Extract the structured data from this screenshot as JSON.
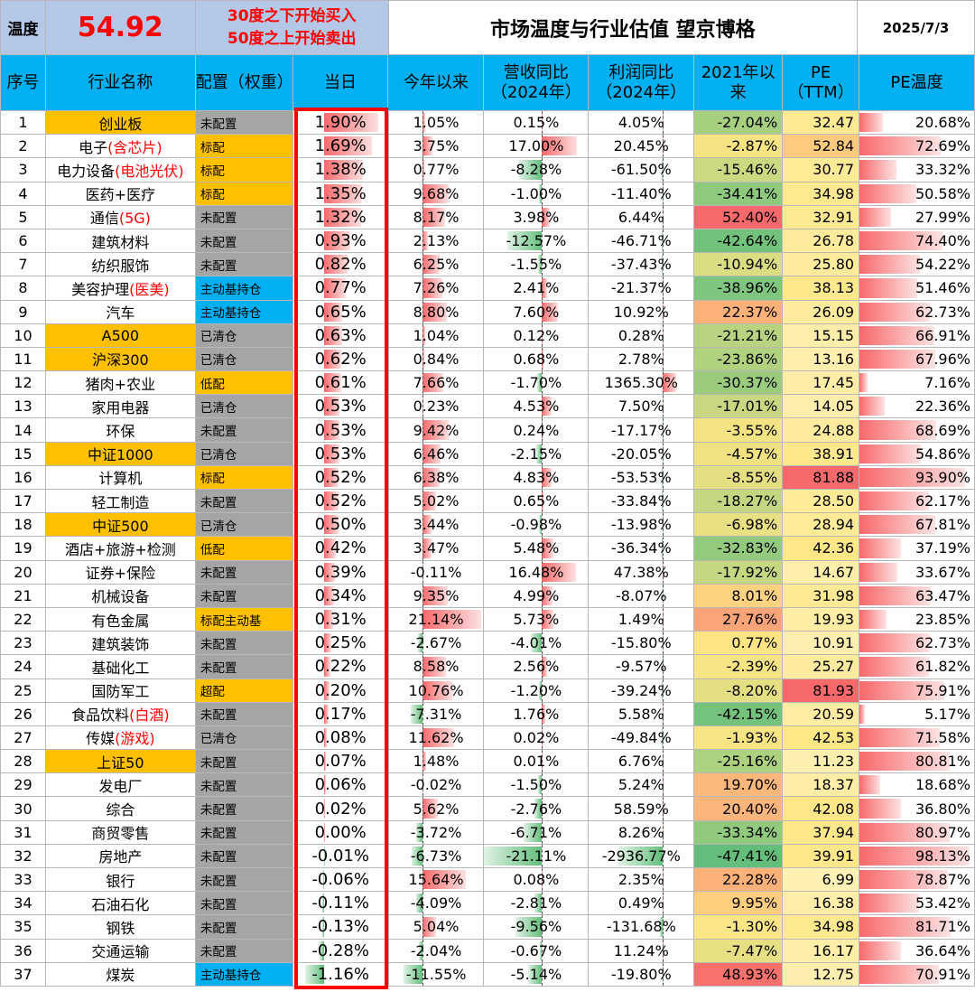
{
  "top": {
    "temp_label": "温度",
    "temp_value": "54.92",
    "note_line1": "30度之下开始买入",
    "note_line2": "50度之上开始卖出",
    "title": "市场温度与行业估值 望京博格",
    "date": "2025/7/3"
  },
  "headers": {
    "idx": "序号",
    "name": "行业名称",
    "alloc": "配置（权重）",
    "day": "当日",
    "ytd": "今年以来",
    "rev": "营收同比（2024年）",
    "profit": "利润同比（2024年）",
    "since": "2021年以来",
    "pe": "PE（TTM）",
    "pe_temp": "PE温度"
  },
  "colors": {
    "header_bg": "#00b0f0",
    "top_bg": "#b4c7e7",
    "highlight": "#ffc000",
    "alloc_gray": "#a5a5a5",
    "frame_red": "#ff0000"
  },
  "rows": [
    {
      "idx": "1",
      "name": "创业板",
      "name_red": "",
      "hl": true,
      "alloc": "未配置",
      "alloc_style": "gray",
      "day": "1.90%",
      "ytd": "1.05%",
      "rev": "0.15%",
      "profit": "4.05%",
      "since": "-27.04%",
      "pe": "32.47",
      "pe_temp": "20.68%"
    },
    {
      "idx": "2",
      "name": "电子",
      "name_red": "(含芯片)",
      "hl": false,
      "alloc": "标配",
      "alloc_style": "gold",
      "day": "1.69%",
      "ytd": "3.75%",
      "rev": "17.00%",
      "profit": "20.45%",
      "since": "-2.87%",
      "pe": "52.84",
      "pe_temp": "72.69%"
    },
    {
      "idx": "3",
      "name": "电力设备",
      "name_red": "(电池光伏)",
      "hl": false,
      "small": true,
      "alloc": "标配",
      "alloc_style": "gold",
      "day": "1.38%",
      "ytd": "0.77%",
      "rev": "-8.28%",
      "profit": "-61.50%",
      "since": "-15.46%",
      "pe": "30.77",
      "pe_temp": "33.32%"
    },
    {
      "idx": "4",
      "name": "医药+医疗",
      "name_red": "",
      "hl": false,
      "alloc": "标配",
      "alloc_style": "gold",
      "day": "1.35%",
      "ytd": "9.68%",
      "rev": "-1.00%",
      "profit": "-11.40%",
      "since": "-34.41%",
      "pe": "34.98",
      "pe_temp": "50.58%"
    },
    {
      "idx": "5",
      "name": "通信",
      "name_red": "(5G)",
      "hl": false,
      "alloc": "未配置",
      "alloc_style": "gray",
      "day": "1.32%",
      "ytd": "8.17%",
      "rev": "3.98%",
      "profit": "6.44%",
      "since": "52.40%",
      "pe": "32.91",
      "pe_temp": "27.99%"
    },
    {
      "idx": "6",
      "name": "建筑材料",
      "name_red": "",
      "hl": false,
      "alloc": "未配置",
      "alloc_style": "gray",
      "day": "0.93%",
      "ytd": "2.13%",
      "rev": "-12.57%",
      "profit": "-46.71%",
      "since": "-42.64%",
      "pe": "26.78",
      "pe_temp": "74.40%"
    },
    {
      "idx": "7",
      "name": "纺织服饰",
      "name_red": "",
      "hl": false,
      "alloc": "未配置",
      "alloc_style": "gray",
      "day": "0.82%",
      "ytd": "6.25%",
      "rev": "-1.55%",
      "profit": "-37.43%",
      "since": "-10.94%",
      "pe": "25.80",
      "pe_temp": "54.22%"
    },
    {
      "idx": "8",
      "name": "美容护理",
      "name_red": "(医美)",
      "hl": false,
      "alloc": "主动基持仓",
      "alloc_style": "blue",
      "day": "0.77%",
      "ytd": "7.26%",
      "rev": "2.41%",
      "profit": "-21.37%",
      "since": "-38.96%",
      "pe": "38.13",
      "pe_temp": "51.46%"
    },
    {
      "idx": "9",
      "name": "汽车",
      "name_red": "",
      "hl": false,
      "alloc": "主动基持仓",
      "alloc_style": "blue",
      "day": "0.65%",
      "ytd": "8.80%",
      "rev": "7.60%",
      "profit": "10.92%",
      "since": "22.37%",
      "pe": "26.09",
      "pe_temp": "62.73%"
    },
    {
      "idx": "10",
      "name": "A500",
      "name_red": "",
      "hl": true,
      "alloc": "已清仓",
      "alloc_style": "gray",
      "day": "0.63%",
      "ytd": "1.04%",
      "rev": "0.12%",
      "profit": "0.28%",
      "since": "-21.21%",
      "pe": "15.15",
      "pe_temp": "66.91%"
    },
    {
      "idx": "11",
      "name": "沪深300",
      "name_red": "",
      "hl": true,
      "alloc": "已清仓",
      "alloc_style": "gray",
      "day": "0.62%",
      "ytd": "0.84%",
      "rev": "0.68%",
      "profit": "2.78%",
      "since": "-23.86%",
      "pe": "13.16",
      "pe_temp": "67.96%"
    },
    {
      "idx": "12",
      "name": "猪肉+农业",
      "name_red": "",
      "hl": false,
      "alloc": "低配",
      "alloc_style": "gold",
      "day": "0.61%",
      "ytd": "7.66%",
      "rev": "-1.70%",
      "profit": "1365.30%",
      "since": "-30.37%",
      "pe": "17.45",
      "pe_temp": "7.16%"
    },
    {
      "idx": "13",
      "name": "家用电器",
      "name_red": "",
      "hl": false,
      "alloc": "已清仓",
      "alloc_style": "gray",
      "day": "0.53%",
      "ytd": "0.23%",
      "rev": "4.53%",
      "profit": "7.50%",
      "since": "-17.01%",
      "pe": "14.05",
      "pe_temp": "22.36%"
    },
    {
      "idx": "14",
      "name": "环保",
      "name_red": "",
      "hl": false,
      "alloc": "未配置",
      "alloc_style": "gray",
      "day": "0.53%",
      "ytd": "9.42%",
      "rev": "0.24%",
      "profit": "-17.17%",
      "since": "-3.55%",
      "pe": "24.88",
      "pe_temp": "68.69%"
    },
    {
      "idx": "15",
      "name": "中证1000",
      "name_red": "",
      "hl": true,
      "alloc": "已清仓",
      "alloc_style": "gray",
      "day": "0.53%",
      "ytd": "6.46%",
      "rev": "-2.15%",
      "profit": "-20.05%",
      "since": "-4.57%",
      "pe": "38.91",
      "pe_temp": "54.86%"
    },
    {
      "idx": "16",
      "name": "计算机",
      "name_red": "",
      "hl": false,
      "alloc": "标配",
      "alloc_style": "gold",
      "day": "0.52%",
      "ytd": "6.38%",
      "rev": "4.83%",
      "profit": "-53.53%",
      "since": "-8.55%",
      "pe": "81.88",
      "pe_temp": "93.90%"
    },
    {
      "idx": "17",
      "name": "轻工制造",
      "name_red": "",
      "hl": false,
      "alloc": "未配置",
      "alloc_style": "gray",
      "day": "0.52%",
      "ytd": "5.02%",
      "rev": "0.65%",
      "profit": "-33.84%",
      "since": "-18.27%",
      "pe": "28.50",
      "pe_temp": "62.17%"
    },
    {
      "idx": "18",
      "name": "中证500",
      "name_red": "",
      "hl": true,
      "alloc": "已清仓",
      "alloc_style": "gray",
      "day": "0.50%",
      "ytd": "3.44%",
      "rev": "-0.98%",
      "profit": "-13.98%",
      "since": "-6.98%",
      "pe": "28.94",
      "pe_temp": "67.81%"
    },
    {
      "idx": "19",
      "name": "酒店+旅游+检测",
      "name_red": "",
      "hl": false,
      "alloc": "低配",
      "alloc_style": "gold",
      "day": "0.42%",
      "ytd": "3.47%",
      "rev": "5.48%",
      "profit": "-36.34%",
      "since": "-32.83%",
      "pe": "42.36",
      "pe_temp": "37.19%"
    },
    {
      "idx": "20",
      "name": "证券+保险",
      "name_red": "",
      "hl": false,
      "alloc": "未配置",
      "alloc_style": "gray",
      "day": "0.39%",
      "ytd": "-0.11%",
      "rev": "16.48%",
      "profit": "47.38%",
      "since": "-17.92%",
      "pe": "14.67",
      "pe_temp": "33.67%"
    },
    {
      "idx": "21",
      "name": "机械设备",
      "name_red": "",
      "hl": false,
      "alloc": "未配置",
      "alloc_style": "gray",
      "day": "0.34%",
      "ytd": "9.35%",
      "rev": "4.99%",
      "profit": "-8.07%",
      "since": "8.01%",
      "pe": "31.98",
      "pe_temp": "63.47%"
    },
    {
      "idx": "22",
      "name": "有色金属",
      "name_red": "",
      "hl": false,
      "alloc": "标配主动基",
      "alloc_style": "gold",
      "day": "0.31%",
      "ytd": "21.14%",
      "rev": "5.73%",
      "profit": "1.49%",
      "since": "27.76%",
      "pe": "19.93",
      "pe_temp": "23.85%"
    },
    {
      "idx": "23",
      "name": "建筑装饰",
      "name_red": "",
      "hl": false,
      "alloc": "未配置",
      "alloc_style": "gray",
      "day": "0.25%",
      "ytd": "-2.67%",
      "rev": "-4.01%",
      "profit": "-15.80%",
      "since": "0.77%",
      "pe": "10.91",
      "pe_temp": "62.73%"
    },
    {
      "idx": "24",
      "name": "基础化工",
      "name_red": "",
      "hl": false,
      "alloc": "未配置",
      "alloc_style": "gray",
      "day": "0.22%",
      "ytd": "8.58%",
      "rev": "2.56%",
      "profit": "-9.57%",
      "since": "-2.39%",
      "pe": "25.27",
      "pe_temp": "61.82%"
    },
    {
      "idx": "25",
      "name": "国防军工",
      "name_red": "",
      "hl": false,
      "alloc": "超配",
      "alloc_style": "gold",
      "day": "0.20%",
      "ytd": "10.76%",
      "rev": "-1.20%",
      "profit": "-39.24%",
      "since": "-8.20%",
      "pe": "81.93",
      "pe_temp": "75.91%"
    },
    {
      "idx": "26",
      "name": "食品饮料",
      "name_red": "(白酒)",
      "hl": false,
      "alloc": "未配置",
      "alloc_style": "gray",
      "day": "0.17%",
      "ytd": "-7.31%",
      "rev": "1.76%",
      "profit": "5.58%",
      "since": "-42.15%",
      "pe": "20.59",
      "pe_temp": "5.17%"
    },
    {
      "idx": "27",
      "name": "传媒",
      "name_red": "(游戏)",
      "hl": false,
      "alloc": "已清仓",
      "alloc_style": "gray",
      "day": "0.08%",
      "ytd": "11.62%",
      "rev": "0.02%",
      "profit": "-49.84%",
      "since": "-1.93%",
      "pe": "42.53",
      "pe_temp": "71.58%"
    },
    {
      "idx": "28",
      "name": "上证50",
      "name_red": "",
      "hl": true,
      "alloc": "未配置",
      "alloc_style": "gray",
      "day": "0.07%",
      "ytd": "1.48%",
      "rev": "0.01%",
      "profit": "6.76%",
      "since": "-25.16%",
      "pe": "11.23",
      "pe_temp": "80.81%"
    },
    {
      "idx": "29",
      "name": "发电厂",
      "name_red": "",
      "hl": false,
      "alloc": "未配置",
      "alloc_style": "gray",
      "day": "0.06%",
      "ytd": "-0.02%",
      "rev": "-1.50%",
      "profit": "5.24%",
      "since": "19.70%",
      "pe": "18.37",
      "pe_temp": "18.68%"
    },
    {
      "idx": "30",
      "name": "综合",
      "name_red": "",
      "hl": false,
      "alloc": "未配置",
      "alloc_style": "gray",
      "day": "0.02%",
      "ytd": "5.62%",
      "rev": "-2.76%",
      "profit": "58.59%",
      "since": "20.40%",
      "pe": "42.08",
      "pe_temp": "36.80%"
    },
    {
      "idx": "31",
      "name": "商贸零售",
      "name_red": "",
      "hl": false,
      "alloc": "未配置",
      "alloc_style": "gray",
      "day": "0.00%",
      "ytd": "-3.72%",
      "rev": "-6.71%",
      "profit": "8.26%",
      "since": "-33.34%",
      "pe": "37.94",
      "pe_temp": "80.97%"
    },
    {
      "idx": "32",
      "name": "房地产",
      "name_red": "",
      "hl": false,
      "alloc": "未配置",
      "alloc_style": "gray",
      "day": "-0.01%",
      "ytd": "-6.73%",
      "rev": "-21.11%",
      "profit": "-2936.77%",
      "since": "-47.41%",
      "pe": "39.91",
      "pe_temp": "98.13%"
    },
    {
      "idx": "33",
      "name": "银行",
      "name_red": "",
      "hl": false,
      "alloc": "未配置",
      "alloc_style": "gray",
      "day": "-0.06%",
      "ytd": "15.64%",
      "rev": "0.08%",
      "profit": "2.35%",
      "since": "22.28%",
      "pe": "6.99",
      "pe_temp": "78.87%"
    },
    {
      "idx": "34",
      "name": "石油石化",
      "name_red": "",
      "hl": false,
      "alloc": "未配置",
      "alloc_style": "gray",
      "day": "-0.11%",
      "ytd": "-4.09%",
      "rev": "-2.81%",
      "profit": "0.49%",
      "since": "9.95%",
      "pe": "16.38",
      "pe_temp": "53.42%"
    },
    {
      "idx": "35",
      "name": "钢铁",
      "name_red": "",
      "hl": false,
      "alloc": "未配置",
      "alloc_style": "gray",
      "day": "-0.13%",
      "ytd": "5.04%",
      "rev": "-9.56%",
      "profit": "-131.68%",
      "since": "-1.30%",
      "pe": "34.98",
      "pe_temp": "81.71%"
    },
    {
      "idx": "36",
      "name": "交通运输",
      "name_red": "",
      "hl": false,
      "alloc": "未配置",
      "alloc_style": "gray",
      "day": "-0.28%",
      "ytd": "-2.04%",
      "rev": "-0.67%",
      "profit": "11.24%",
      "since": "-7.47%",
      "pe": "16.17",
      "pe_temp": "36.64%"
    },
    {
      "idx": "37",
      "name": "煤炭",
      "name_red": "",
      "hl": false,
      "alloc": "主动基持仓",
      "alloc_style": "blue",
      "day": "-1.16%",
      "ytd": "-11.55%",
      "rev": "-5.14%",
      "profit": "-19.80%",
      "since": "48.93%",
      "pe": "12.75",
      "pe_temp": "70.91%"
    }
  ]
}
